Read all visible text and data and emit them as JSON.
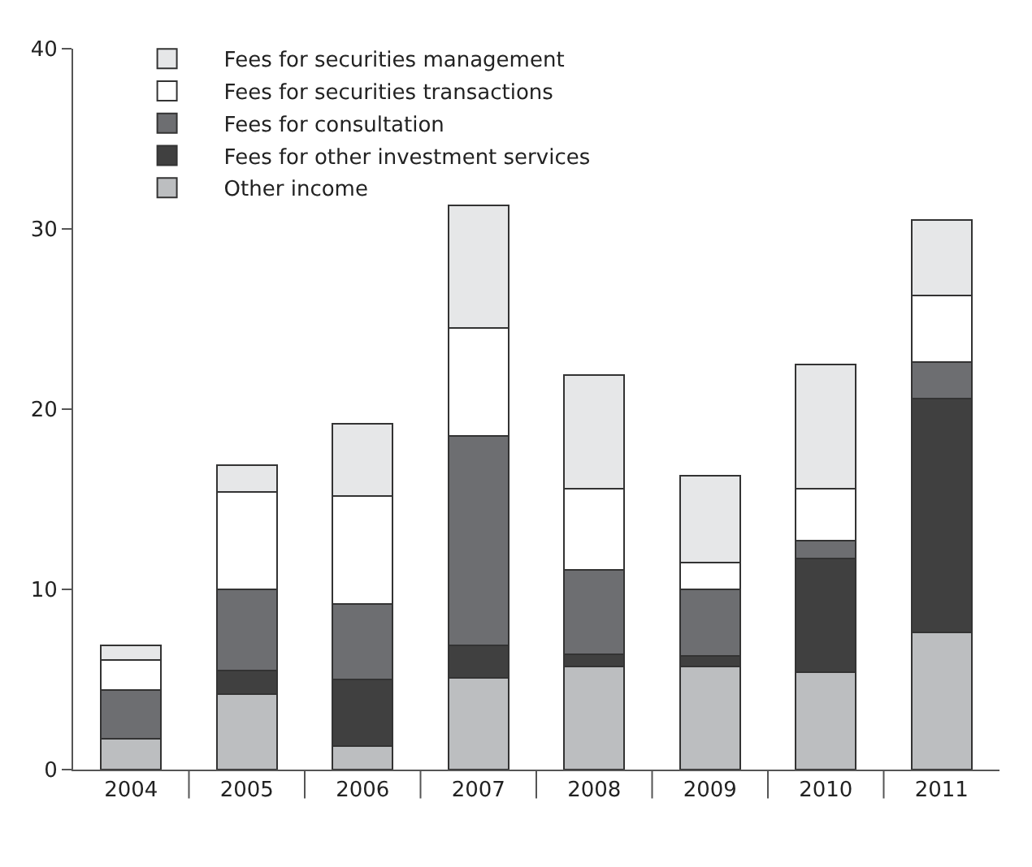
{
  "chart_data": {
    "type": "bar",
    "stacked": true,
    "categories": [
      "2004",
      "2005",
      "2006",
      "2007",
      "2008",
      "2009",
      "2010",
      "2011"
    ],
    "series": [
      {
        "name": "Other income",
        "color": "#bcbec0",
        "values": [
          1.7,
          4.2,
          1.3,
          5.1,
          5.7,
          5.7,
          5.4,
          7.6
        ]
      },
      {
        "name": "Fees for other investment services",
        "color": "#404040",
        "values": [
          0,
          1.3,
          3.7,
          1.8,
          0.7,
          0.6,
          6.3,
          13.0
        ]
      },
      {
        "name": "Fees for consultation",
        "color": "#6d6e71",
        "values": [
          2.7,
          4.5,
          4.2,
          11.6,
          4.7,
          3.7,
          1.0,
          2.0
        ]
      },
      {
        "name": "Fees for securities transactions",
        "color": "#ffffff",
        "values": [
          1.7,
          5.4,
          6.0,
          6.0,
          4.5,
          1.5,
          2.9,
          3.7
        ]
      },
      {
        "name": "Fees for securities management",
        "color": "#e6e7e8",
        "values": [
          0.8,
          1.5,
          4.0,
          6.8,
          6.3,
          4.8,
          6.9,
          4.2
        ]
      }
    ],
    "ylim": [
      0,
      40
    ],
    "yticks": [
      0,
      10,
      20,
      30,
      40
    ],
    "grid": false,
    "legend": "top left"
  }
}
